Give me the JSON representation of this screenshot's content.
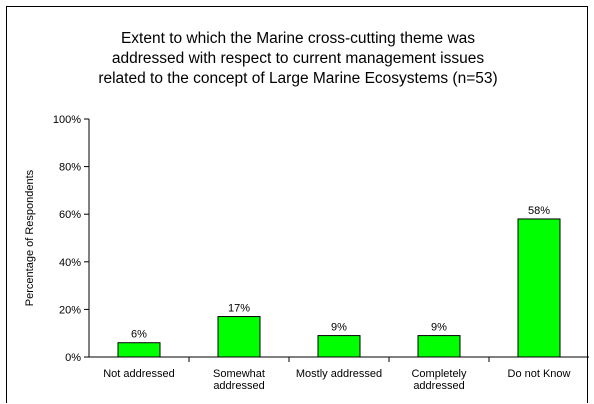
{
  "chart_data": {
    "type": "bar",
    "title_lines": [
      "Extent to which the Marine cross-cutting theme was",
      "addressed with respect to current management issues",
      "related to the concept of Large Marine Ecosystems (n=53)"
    ],
    "xlabel": "",
    "ylabel": "Percentage of Respondents",
    "categories": [
      [
        "Not addressed"
      ],
      [
        "Somewhat",
        "addressed"
      ],
      [
        "Mostly addressed"
      ],
      [
        "Completely",
        "addressed"
      ],
      [
        "Do not Know"
      ]
    ],
    "values": [
      6,
      17,
      9,
      9,
      58
    ],
    "value_labels": [
      "6%",
      "17%",
      "9%",
      "9%",
      "58%"
    ],
    "ylim": [
      0,
      100
    ],
    "yticks": [
      0,
      20,
      40,
      60,
      80,
      100
    ],
    "ytick_labels": [
      "0%",
      "20%",
      "40%",
      "60%",
      "80%",
      "100%"
    ],
    "bar_color": "#00ff00",
    "bar_border_color": "#000000",
    "grid": false,
    "legend": "none"
  }
}
